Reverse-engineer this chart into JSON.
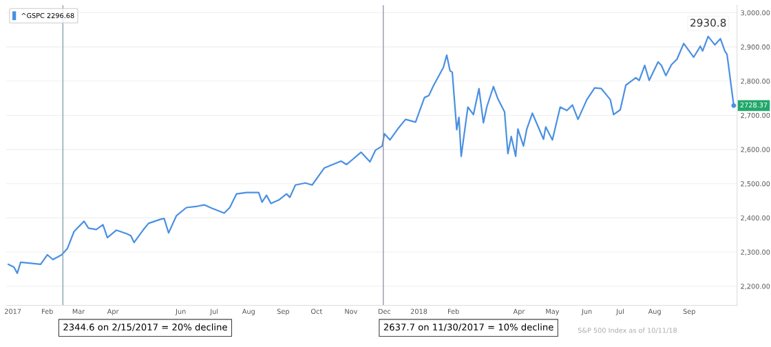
{
  "chart_data": {
    "type": "line",
    "x": [
      "2016-12-28",
      "2017-01-02",
      "2017-01-05",
      "2017-01-08",
      "2017-01-14",
      "2017-01-26",
      "2017-02-01",
      "2017-02-06",
      "2017-02-14",
      "2017-02-19",
      "2017-02-25",
      "2017-03-06",
      "2017-03-10",
      "2017-03-17",
      "2017-03-23",
      "2017-03-27",
      "2017-04-04",
      "2017-04-13",
      "2017-04-17",
      "2017-04-20",
      "2017-04-28",
      "2017-05-03",
      "2017-05-14",
      "2017-05-17",
      "2017-05-21",
      "2017-05-28",
      "2017-06-06",
      "2017-06-16",
      "2017-06-22",
      "2017-06-29",
      "2017-07-10",
      "2017-07-15",
      "2017-07-21",
      "2017-07-30",
      "2017-08-10",
      "2017-08-13",
      "2017-08-17",
      "2017-08-21",
      "2017-08-28",
      "2017-09-04",
      "2017-09-07",
      "2017-09-12",
      "2017-09-21",
      "2017-09-27",
      "2017-10-08",
      "2017-10-23",
      "2017-10-28",
      "2017-11-10",
      "2017-11-18",
      "2017-11-23",
      "2017-11-29",
      "2017-12-01",
      "2017-12-06",
      "2017-12-13",
      "2017-12-20",
      "2017-12-29",
      "2018-01-06",
      "2018-01-10",
      "2018-01-14",
      "2018-01-17",
      "2018-01-23",
      "2018-01-26",
      "2018-01-29",
      "2018-01-31",
      "2018-02-04",
      "2018-02-06",
      "2018-02-08",
      "2018-02-14",
      "2018-02-19",
      "2018-02-24",
      "2018-02-28",
      "2018-03-03",
      "2018-03-09",
      "2018-03-13",
      "2018-03-19",
      "2018-03-22",
      "2018-03-25",
      "2018-03-29",
      "2018-03-31",
      "2018-04-05",
      "2018-04-08",
      "2018-04-13",
      "2018-04-23",
      "2018-04-25",
      "2018-05-01",
      "2018-05-08",
      "2018-05-14",
      "2018-05-19",
      "2018-05-24",
      "2018-06-01",
      "2018-06-08",
      "2018-06-14",
      "2018-06-18",
      "2018-06-22",
      "2018-06-25",
      "2018-07-01",
      "2018-07-06",
      "2018-07-10",
      "2018-07-15",
      "2018-07-18",
      "2018-07-23",
      "2018-07-27",
      "2018-08-04",
      "2018-08-07",
      "2018-08-11",
      "2018-08-16",
      "2018-08-21",
      "2018-08-27",
      "2018-09-05",
      "2018-09-11",
      "2018-09-13",
      "2018-09-18",
      "2018-09-24",
      "2018-09-29",
      "2018-10-03",
      "2018-10-05",
      "2018-10-11"
    ],
    "series": [
      {
        "name": "^GSPC 2296.68",
        "color": "#4a90e2",
        "values": [
          2264,
          2256,
          2238,
          2270,
          2268,
          2264,
          2292,
          2278,
          2292,
          2310,
          2360,
          2390,
          2370,
          2366,
          2380,
          2342,
          2364,
          2354,
          2348,
          2328,
          2364,
          2384,
          2396,
          2398,
          2356,
          2406,
          2430,
          2434,
          2438,
          2428,
          2414,
          2430,
          2470,
          2474,
          2474,
          2446,
          2466,
          2442,
          2452,
          2470,
          2460,
          2496,
          2502,
          2496,
          2546,
          2566,
          2556,
          2592,
          2564,
          2598,
          2610,
          2646,
          2628,
          2660,
          2688,
          2680,
          2752,
          2758,
          2786,
          2804,
          2840,
          2876,
          2830,
          2826,
          2658,
          2694,
          2580,
          2724,
          2702,
          2778,
          2678,
          2724,
          2784,
          2748,
          2710,
          2588,
          2638,
          2580,
          2660,
          2610,
          2660,
          2706,
          2630,
          2666,
          2628,
          2724,
          2714,
          2730,
          2688,
          2746,
          2780,
          2778,
          2762,
          2746,
          2702,
          2716,
          2788,
          2798,
          2810,
          2802,
          2846,
          2802,
          2856,
          2846,
          2816,
          2848,
          2864,
          2910,
          2870,
          2902,
          2888,
          2930.8,
          2906,
          2924,
          2888,
          2878,
          2728.37
        ]
      }
    ],
    "xlim": [
      "2016-12-26",
      "2018-10-14"
    ],
    "xticks": [
      {
        "value": "2017-01-01",
        "label": "2017"
      },
      {
        "value": "2017-02-01",
        "label": "Feb"
      },
      {
        "value": "2017-03-01",
        "label": "Mar"
      },
      {
        "value": "2017-04-01",
        "label": "Apr"
      },
      {
        "value": "2017-06-01",
        "label": "Jun"
      },
      {
        "value": "2017-07-01",
        "label": "Jul"
      },
      {
        "value": "2017-08-01",
        "label": "Aug"
      },
      {
        "value": "2017-09-01",
        "label": "Sep"
      },
      {
        "value": "2017-10-01",
        "label": "Oct"
      },
      {
        "value": "2017-11-01",
        "label": "Nov"
      },
      {
        "value": "2017-12-01",
        "label": "Dec"
      },
      {
        "value": "2018-01-01",
        "label": "2018"
      },
      {
        "value": "2018-02-01",
        "label": "Feb"
      },
      {
        "value": "2018-04-01",
        "label": "Apr"
      },
      {
        "value": "2018-05-01",
        "label": "May"
      },
      {
        "value": "2018-06-01",
        "label": "Jun"
      },
      {
        "value": "2018-07-01",
        "label": "Jul"
      },
      {
        "value": "2018-08-01",
        "label": "Aug"
      },
      {
        "value": "2018-09-01",
        "label": "Sep"
      }
    ],
    "ylim": [
      2144,
      3022
    ],
    "yticks": [
      {
        "value": 2200,
        "label": "2,200.00"
      },
      {
        "value": 2300,
        "label": "2,300.00"
      },
      {
        "value": 2400,
        "label": "2,400.00"
      },
      {
        "value": 2500,
        "label": "2,500.00"
      },
      {
        "value": 2600,
        "label": "2,600.00"
      },
      {
        "value": 2700,
        "label": "2,700.00"
      },
      {
        "value": 2800,
        "label": "2,800.00"
      },
      {
        "value": 2900,
        "label": "2,900.00"
      },
      {
        "value": 3000,
        "label": "3,000.00"
      }
    ],
    "ref_lines": [
      {
        "axis": "x",
        "value": "2017-02-15",
        "label": "2344.6 on 2/15/2017 = 20% decline",
        "color": "#7a9aa8"
      },
      {
        "axis": "x",
        "value": "2017-11-30",
        "label": "2637.7 on 11/30/2017 = 10% decline",
        "color": "#8a8aa0"
      }
    ],
    "annotations": [
      {
        "text": "2930.8",
        "x": "2018-09-18",
        "y": 2930.8
      },
      {
        "text": "2728.37",
        "x": "2018-10-11",
        "y": 2728.37
      },
      "S&P 500 Index as of 10/11/18"
    ],
    "grid": "y",
    "legend": "top left",
    "marker": "none",
    "line_style": "solid"
  }
}
